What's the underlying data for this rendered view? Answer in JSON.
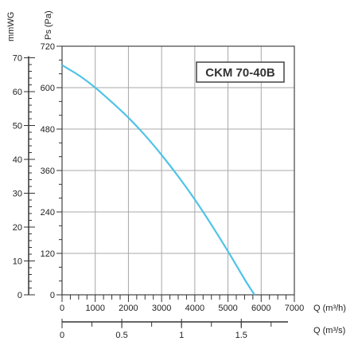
{
  "chart_data": {
    "type": "line",
    "model_label": "CKM 70-40B",
    "left_axis_unit": "mmWG",
    "y_axis_unit": "Ps (Pa)",
    "x_axis_unit": "Q (m³/h)",
    "x2_axis_unit": "Q (m³/s)",
    "xlim": [
      0,
      7000
    ],
    "ylim": [
      0,
      720
    ],
    "x_ticks": [
      0,
      1000,
      2000,
      3000,
      4000,
      5000,
      6000,
      7000
    ],
    "y_ticks": [
      0,
      120,
      240,
      360,
      480,
      600,
      720
    ],
    "left_ticks": [
      0,
      10,
      20,
      30,
      40,
      50,
      60,
      70
    ],
    "x2_ticks": [
      "0",
      "0.5",
      "1",
      "1.5"
    ],
    "x2_tick_values": [
      0,
      0.5,
      1,
      1.5
    ],
    "grid": true,
    "series": [
      {
        "color": "#4fc3e6",
        "x": [
          0,
          500,
          1000,
          1500,
          2000,
          2500,
          3000,
          3500,
          4000,
          4500,
          5000,
          5500,
          5800
        ],
        "y": [
          665,
          636,
          600,
          558,
          513,
          462,
          405,
          343,
          276,
          203,
          126,
          45,
          0
        ]
      }
    ]
  }
}
